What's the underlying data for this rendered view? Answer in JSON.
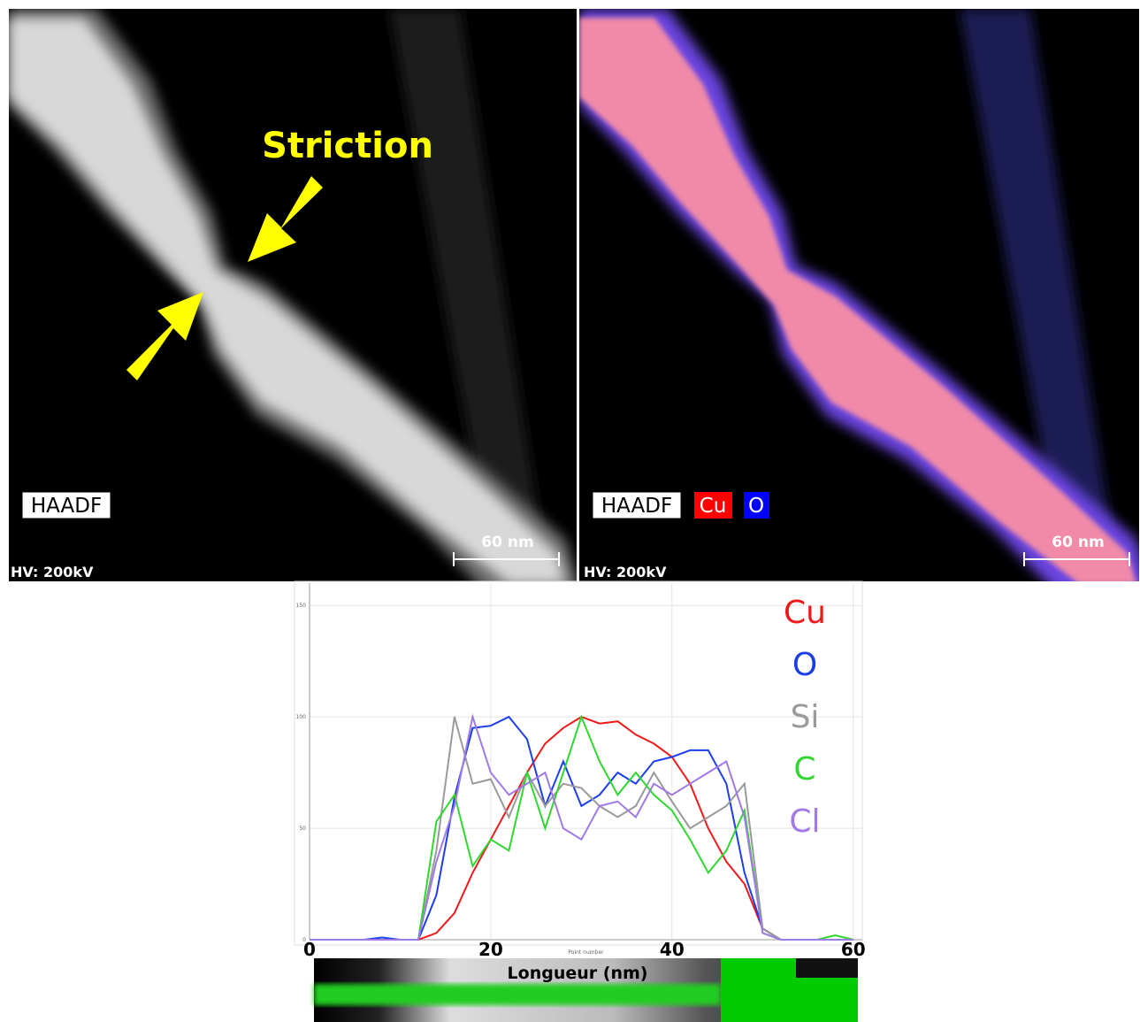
{
  "images": {
    "annotation": "Striction",
    "left_panel": {
      "label": "HAADF",
      "voltage": "HV: 200kV",
      "scale": "60 nm"
    },
    "right_panel": {
      "label": "HAADF",
      "elements": [
        "Cu",
        "O"
      ],
      "voltage": "HV: 200kV",
      "scale": "60 nm"
    }
  },
  "chart_data": {
    "type": "line",
    "xlabel": "Point number",
    "annotation": "Longueur (nm)",
    "x": [
      0,
      2,
      4,
      6,
      8,
      10,
      12,
      14,
      16,
      18,
      20,
      22,
      24,
      26,
      28,
      30,
      32,
      34,
      36,
      38,
      40,
      42,
      44,
      46,
      48,
      50,
      52,
      54,
      56,
      58,
      60
    ],
    "xlim": [
      0,
      61
    ],
    "xticks": [
      0,
      20,
      40,
      60
    ],
    "ylim": [
      0,
      160
    ],
    "yticks": [
      0,
      50,
      100,
      150
    ],
    "grid": true,
    "legend": "top-right",
    "series": [
      {
        "name": "Cu",
        "color": "#f01818",
        "values": [
          0,
          0,
          0,
          0,
          0,
          0,
          0,
          3,
          12,
          30,
          45,
          60,
          75,
          88,
          95,
          100,
          97,
          98,
          92,
          88,
          82,
          70,
          50,
          35,
          25,
          5,
          0,
          0,
          0,
          0,
          0
        ]
      },
      {
        "name": "O",
        "color": "#1c3ee8",
        "values": [
          0,
          0,
          0,
          0,
          1,
          0,
          0,
          20,
          64,
          95,
          96,
          100,
          90,
          60,
          80,
          60,
          65,
          75,
          70,
          80,
          82,
          85,
          85,
          70,
          30,
          5,
          0,
          0,
          0,
          0,
          0
        ]
      },
      {
        "name": "Si",
        "color": "#9a9a9a",
        "values": [
          0,
          0,
          0,
          0,
          0,
          0,
          0,
          40,
          100,
          70,
          72,
          55,
          75,
          60,
          70,
          68,
          60,
          55,
          60,
          75,
          62,
          50,
          55,
          60,
          70,
          5,
          0,
          0,
          0,
          0,
          0
        ]
      },
      {
        "name": "C",
        "color": "#2ed82e",
        "values": [
          0,
          0,
          0,
          0,
          0,
          0,
          0,
          53,
          65,
          33,
          45,
          40,
          75,
          50,
          75,
          100,
          80,
          65,
          75,
          65,
          58,
          45,
          30,
          40,
          58,
          3,
          0,
          0,
          0,
          2,
          0
        ]
      },
      {
        "name": "Cl",
        "color": "#a07ae6",
        "values": [
          0,
          0,
          0,
          0,
          0,
          0,
          0,
          35,
          60,
          100,
          75,
          65,
          70,
          75,
          50,
          45,
          60,
          62,
          55,
          70,
          65,
          70,
          75,
          80,
          55,
          3,
          0,
          0,
          0,
          0,
          0
        ]
      }
    ]
  }
}
